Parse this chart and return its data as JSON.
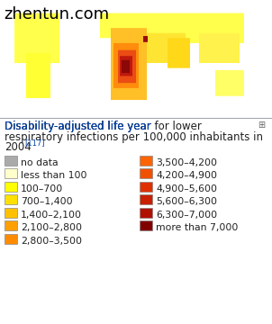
{
  "title_map": "zhentun.com",
  "title_map_color": "#000000",
  "title_map_fontsize": 13,
  "caption_blue": "Disability-adjusted life year",
  "caption_black": " for lower respiratory infections per 100,000 inhabitants in 2004",
  "caption_superscript": "[117]",
  "caption_color_link": "#0645ad",
  "caption_color_text": "#202122",
  "caption_fontsize": 8.5,
  "icon_char": "⊞",
  "legend_items_left": [
    {
      "label": "no data",
      "color": "#aaaaaa"
    },
    {
      "label": "less than 100",
      "color": "#ffffcc"
    },
    {
      "label": "100–700",
      "color": "#ffff00"
    },
    {
      "label": "700–1,400",
      "color": "#ffe000"
    },
    {
      "label": "1,400–2,100",
      "color": "#ffc000"
    },
    {
      "label": "2,100–2,800",
      "color": "#ffa000"
    },
    {
      "label": "2,800–3,500",
      "color": "#ff8c00"
    }
  ],
  "legend_items_right": [
    {
      "label": "3,500–4,200",
      "color": "#ff6400"
    },
    {
      "label": "4,200–4,900",
      "color": "#f05000"
    },
    {
      "label": "4,900–5,600",
      "color": "#e03000"
    },
    {
      "label": "5,600–6,300",
      "color": "#c82000"
    },
    {
      "label": "6,300–7,000",
      "color": "#b01000"
    },
    {
      "label": "more than 7,000",
      "color": "#800000"
    }
  ],
  "text_fontsize": 7.8,
  "fig_bg": "#ffffff",
  "panel_bg": "#f8f9fa",
  "border_color": "#a2a9b1",
  "map_bg": "#ffffff",
  "ocean_color": "#ffffff"
}
